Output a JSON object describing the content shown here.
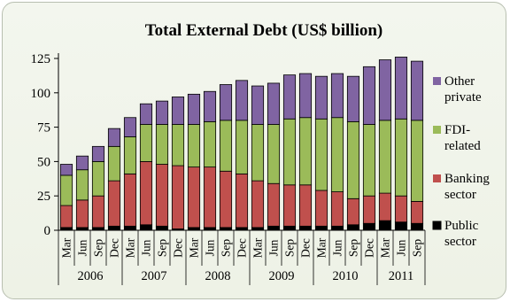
{
  "chart_data": {
    "type": "bar",
    "stacked": true,
    "title": "Total External Debt (US$ billion)",
    "xlabel": "",
    "ylabel": "",
    "ylim": [
      0,
      125
    ],
    "yticks": [
      0,
      25,
      50,
      75,
      100,
      125
    ],
    "grid": false,
    "legend_position": "right",
    "categories": [
      "Mar",
      "Jun",
      "Sep",
      "Dec",
      "Mar",
      "Jun",
      "Sep",
      "Dec",
      "Mar",
      "Jun",
      "Sep",
      "Dec",
      "Mar",
      "Jun",
      "Sep",
      "Dec",
      "Mar",
      "Jun",
      "Sep",
      "Dec",
      "Mar",
      "Jun",
      "Sep"
    ],
    "years": [
      {
        "label": "2006",
        "count": 4
      },
      {
        "label": "2007",
        "count": 4
      },
      {
        "label": "2008",
        "count": 4
      },
      {
        "label": "2009",
        "count": 4
      },
      {
        "label": "2010",
        "count": 4
      },
      {
        "label": "2011",
        "count": 3
      }
    ],
    "series": [
      {
        "name": "Public sector",
        "color": "#000000",
        "values": [
          2,
          2,
          2,
          3,
          3,
          4,
          3,
          1,
          2,
          2,
          2,
          2,
          2,
          3,
          3,
          3,
          3,
          3,
          4,
          5,
          7,
          6,
          5
        ]
      },
      {
        "name": "Banking sector",
        "color": "#c0504d",
        "values": [
          16,
          20,
          23,
          33,
          38,
          46,
          45,
          46,
          44,
          44,
          41,
          39,
          34,
          31,
          30,
          30,
          26,
          25,
          19,
          20,
          20,
          19,
          16
        ]
      },
      {
        "name": "FDI-related",
        "color": "#9bbb59",
        "values": [
          22,
          22,
          25,
          25,
          27,
          27,
          29,
          30,
          31,
          33,
          37,
          39,
          41,
          43,
          48,
          49,
          52,
          54,
          56,
          52,
          53,
          56,
          59
        ]
      },
      {
        "name": "Other private",
        "color": "#8064a2",
        "values": [
          8,
          10,
          11,
          13,
          14,
          15,
          17,
          20,
          22,
          22,
          26,
          29,
          28,
          30,
          32,
          32,
          31,
          32,
          33,
          42,
          44,
          45,
          43
        ]
      }
    ],
    "legend_order": [
      "Other private",
      "FDI-related",
      "Banking sector",
      "Public sector"
    ],
    "legend_lines": {
      "Other private": [
        "Other",
        "private"
      ],
      "FDI-related": [
        "FDI-",
        "related"
      ],
      "Banking sector": [
        "Banking",
        "sector"
      ],
      "Public sector": [
        "Public",
        "sector"
      ]
    }
  }
}
